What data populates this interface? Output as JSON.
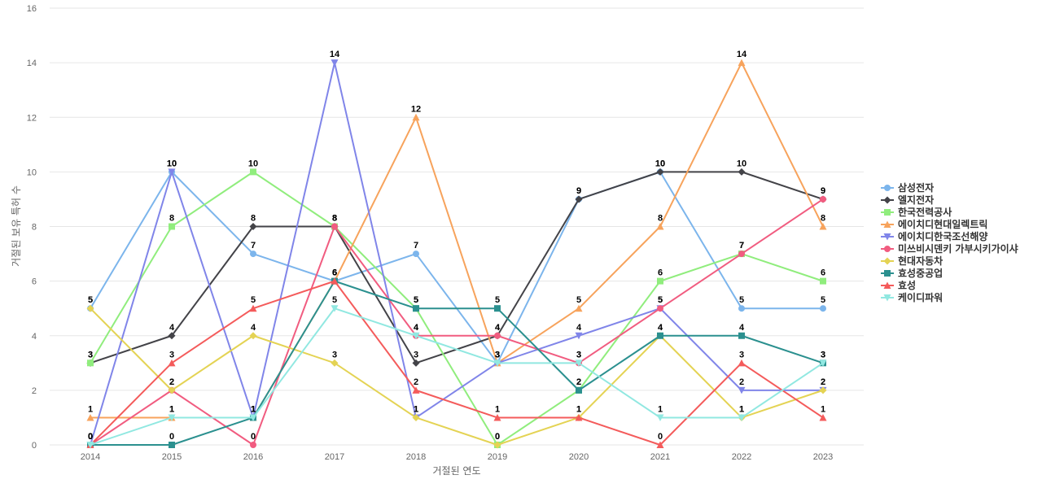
{
  "chart_data": {
    "type": "line",
    "xlabel": "거절된 연도",
    "ylabel": "거절된 보유 특허 수",
    "x": [
      2014,
      2015,
      2016,
      2017,
      2018,
      2019,
      2020,
      2021,
      2022,
      2023
    ],
    "ylim": [
      0,
      16
    ],
    "yticks": [
      0,
      2,
      4,
      6,
      8,
      10,
      12,
      14,
      16
    ],
    "grid": true,
    "legend_position": "right",
    "series": [
      {
        "name": "삼성전자",
        "color": "#7cb5ec",
        "marker": "circle",
        "values": [
          5,
          10,
          7,
          6,
          7,
          3,
          9,
          10,
          5,
          5
        ]
      },
      {
        "name": "엘지전자",
        "color": "#434348",
        "marker": "diamond",
        "values": [
          3,
          4,
          8,
          8,
          3,
          4,
          9,
          10,
          10,
          9
        ]
      },
      {
        "name": "한국전력공사",
        "color": "#90ed7d",
        "marker": "square",
        "values": [
          3,
          8,
          10,
          8,
          5,
          0,
          2,
          6,
          7,
          6
        ]
      },
      {
        "name": "에이치디현대일렉트릭",
        "color": "#f7a35c",
        "marker": "triangle",
        "values": [
          1,
          1,
          1,
          6,
          12,
          3,
          5,
          8,
          14,
          8
        ]
      },
      {
        "name": "에이치디한국조선해양",
        "color": "#8085e9",
        "marker": "triangle-down",
        "values": [
          0,
          10,
          1,
          14,
          1,
          3,
          4,
          5,
          2,
          2
        ]
      },
      {
        "name": "미쓰비시덴키 가부시키가이샤",
        "color": "#f15c80",
        "marker": "circle",
        "values": [
          0,
          2,
          0,
          8,
          4,
          4,
          3,
          5,
          7,
          9
        ]
      },
      {
        "name": "현대자동차",
        "color": "#e4d354",
        "marker": "diamond",
        "values": [
          5,
          2,
          4,
          3,
          1,
          0,
          1,
          4,
          1,
          2
        ]
      },
      {
        "name": "효성중공업",
        "color": "#2b908f",
        "marker": "square",
        "values": [
          0,
          0,
          1,
          6,
          5,
          5,
          2,
          4,
          4,
          3
        ]
      },
      {
        "name": "효성",
        "color": "#f45b5b",
        "marker": "triangle",
        "values": [
          0,
          3,
          5,
          6,
          2,
          1,
          1,
          0,
          3,
          1
        ]
      },
      {
        "name": "케이디파워",
        "color": "#91e8e1",
        "marker": "triangle-down",
        "values": [
          0,
          1,
          1,
          5,
          4,
          3,
          3,
          1,
          1,
          3
        ]
      }
    ]
  }
}
